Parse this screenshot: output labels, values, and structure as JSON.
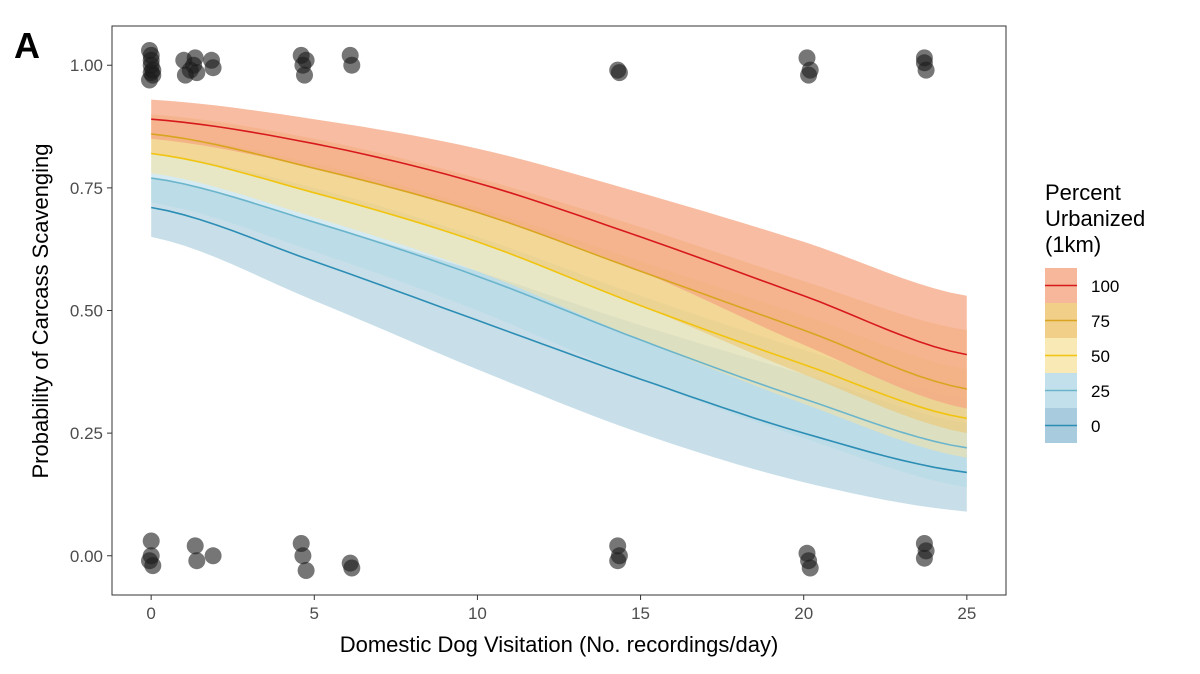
{
  "panel_label": "A",
  "chart_data": {
    "type": "line",
    "title": "",
    "xlabel": "Domestic Dog Visitation (No. recordings/day)",
    "ylabel": "Probability of Carcass Scavenging",
    "xlim": [
      -1.2,
      26.2
    ],
    "ylim": [
      -0.08,
      1.08
    ],
    "x_ticks": [
      0,
      5,
      10,
      15,
      20,
      25
    ],
    "x_tick_labels": [
      "0",
      "5",
      "10",
      "15",
      "20",
      "25"
    ],
    "y_ticks": [
      0.0,
      0.25,
      0.5,
      0.75,
      1.0
    ],
    "y_tick_labels": [
      "0.00",
      "0.25",
      "0.50",
      "0.75",
      "1.00"
    ],
    "grid": false,
    "legend": {
      "title_lines": [
        "Percent",
        "Urbanized",
        "(1km)"
      ],
      "position": "right"
    },
    "series": [
      {
        "name": "100",
        "color": "#d7191c",
        "band_color": "#f4a582",
        "band_opacity": 0.75,
        "x": [
          0,
          5,
          10,
          15,
          20,
          25
        ],
        "fit": [
          0.89,
          0.84,
          0.76,
          0.65,
          0.53,
          0.41
        ],
        "lower": [
          0.85,
          0.79,
          0.7,
          0.58,
          0.43,
          0.3
        ],
        "upper": [
          0.93,
          0.89,
          0.83,
          0.74,
          0.64,
          0.53
        ]
      },
      {
        "name": "75",
        "color": "#d9a520",
        "band_color": "#edc36b",
        "band_opacity": 0.55,
        "x": [
          0,
          5,
          10,
          15,
          20,
          25
        ],
        "fit": [
          0.86,
          0.79,
          0.7,
          0.58,
          0.46,
          0.34
        ],
        "lower": [
          0.82,
          0.74,
          0.64,
          0.51,
          0.37,
          0.25
        ],
        "upper": [
          0.9,
          0.85,
          0.77,
          0.67,
          0.56,
          0.46
        ]
      },
      {
        "name": "50",
        "color": "#f1c40f",
        "band_color": "#f7e3a1",
        "band_opacity": 0.55,
        "x": [
          0,
          5,
          10,
          15,
          20,
          25
        ],
        "fit": [
          0.82,
          0.74,
          0.64,
          0.51,
          0.39,
          0.28
        ],
        "lower": [
          0.78,
          0.69,
          0.58,
          0.44,
          0.31,
          0.2
        ],
        "upper": [
          0.86,
          0.8,
          0.71,
          0.6,
          0.49,
          0.38
        ]
      },
      {
        "name": "25",
        "color": "#6bb5cc",
        "band_color": "#b3d8e6",
        "band_opacity": 0.55,
        "x": [
          0,
          5,
          10,
          15,
          20,
          25
        ],
        "fit": [
          0.77,
          0.68,
          0.57,
          0.44,
          0.32,
          0.22
        ],
        "lower": [
          0.72,
          0.62,
          0.5,
          0.36,
          0.24,
          0.14
        ],
        "upper": [
          0.82,
          0.75,
          0.65,
          0.53,
          0.42,
          0.32
        ]
      },
      {
        "name": "0",
        "color": "#2c8db5",
        "band_color": "#92bfd4",
        "band_opacity": 0.5,
        "x": [
          0,
          5,
          10,
          15,
          20,
          25
        ],
        "fit": [
          0.71,
          0.6,
          0.48,
          0.36,
          0.25,
          0.17
        ],
        "lower": [
          0.65,
          0.52,
          0.38,
          0.25,
          0.15,
          0.09
        ],
        "upper": [
          0.77,
          0.68,
          0.58,
          0.47,
          0.37,
          0.27
        ]
      }
    ],
    "points": {
      "color": "#1a1a1a",
      "opacity": 0.6,
      "data": [
        {
          "x": 0.0,
          "y": 1.02
        },
        {
          "x": 0.0,
          "y": 1.0
        },
        {
          "x": 0.05,
          "y": 0.98
        },
        {
          "x": -0.05,
          "y": 0.97
        },
        {
          "x": 0.0,
          "y": 1.01
        },
        {
          "x": 0.05,
          "y": 0.99
        },
        {
          "x": -0.05,
          "y": 1.03
        },
        {
          "x": 0.0,
          "y": 0.985
        },
        {
          "x": 1.0,
          "y": 1.01
        },
        {
          "x": 1.05,
          "y": 0.98
        },
        {
          "x": 1.2,
          "y": 0.99
        },
        {
          "x": 1.35,
          "y": 1.015
        },
        {
          "x": 1.4,
          "y": 0.985
        },
        {
          "x": 1.3,
          "y": 1.0
        },
        {
          "x": 1.85,
          "y": 1.01
        },
        {
          "x": 1.9,
          "y": 0.995
        },
        {
          "x": 4.6,
          "y": 1.02
        },
        {
          "x": 4.65,
          "y": 1.0
        },
        {
          "x": 4.7,
          "y": 0.98
        },
        {
          "x": 4.75,
          "y": 1.01
        },
        {
          "x": 6.1,
          "y": 1.02
        },
        {
          "x": 6.15,
          "y": 1.0
        },
        {
          "x": 14.3,
          "y": 0.99
        },
        {
          "x": 14.35,
          "y": 0.985
        },
        {
          "x": 20.1,
          "y": 1.015
        },
        {
          "x": 20.15,
          "y": 0.98
        },
        {
          "x": 20.2,
          "y": 0.99
        },
        {
          "x": 23.7,
          "y": 1.015
        },
        {
          "x": 23.75,
          "y": 0.99
        },
        {
          "x": 23.7,
          "y": 1.005
        },
        {
          "x": 0.0,
          "y": 0.03
        },
        {
          "x": 0.0,
          "y": 0.0
        },
        {
          "x": 0.05,
          "y": -0.02
        },
        {
          "x": -0.05,
          "y": -0.01
        },
        {
          "x": 1.35,
          "y": 0.02
        },
        {
          "x": 1.4,
          "y": -0.01
        },
        {
          "x": 1.9,
          "y": 0.0
        },
        {
          "x": 4.6,
          "y": 0.025
        },
        {
          "x": 4.65,
          "y": 0.0
        },
        {
          "x": 4.75,
          "y": -0.03
        },
        {
          "x": 6.1,
          "y": -0.015
        },
        {
          "x": 6.15,
          "y": -0.025
        },
        {
          "x": 14.3,
          "y": 0.02
        },
        {
          "x": 14.35,
          "y": 0.0
        },
        {
          "x": 14.3,
          "y": -0.01
        },
        {
          "x": 20.1,
          "y": 0.005
        },
        {
          "x": 20.15,
          "y": -0.01
        },
        {
          "x": 20.2,
          "y": -0.025
        },
        {
          "x": 23.7,
          "y": 0.025
        },
        {
          "x": 23.75,
          "y": 0.01
        },
        {
          "x": 23.7,
          "y": -0.005
        }
      ]
    }
  }
}
